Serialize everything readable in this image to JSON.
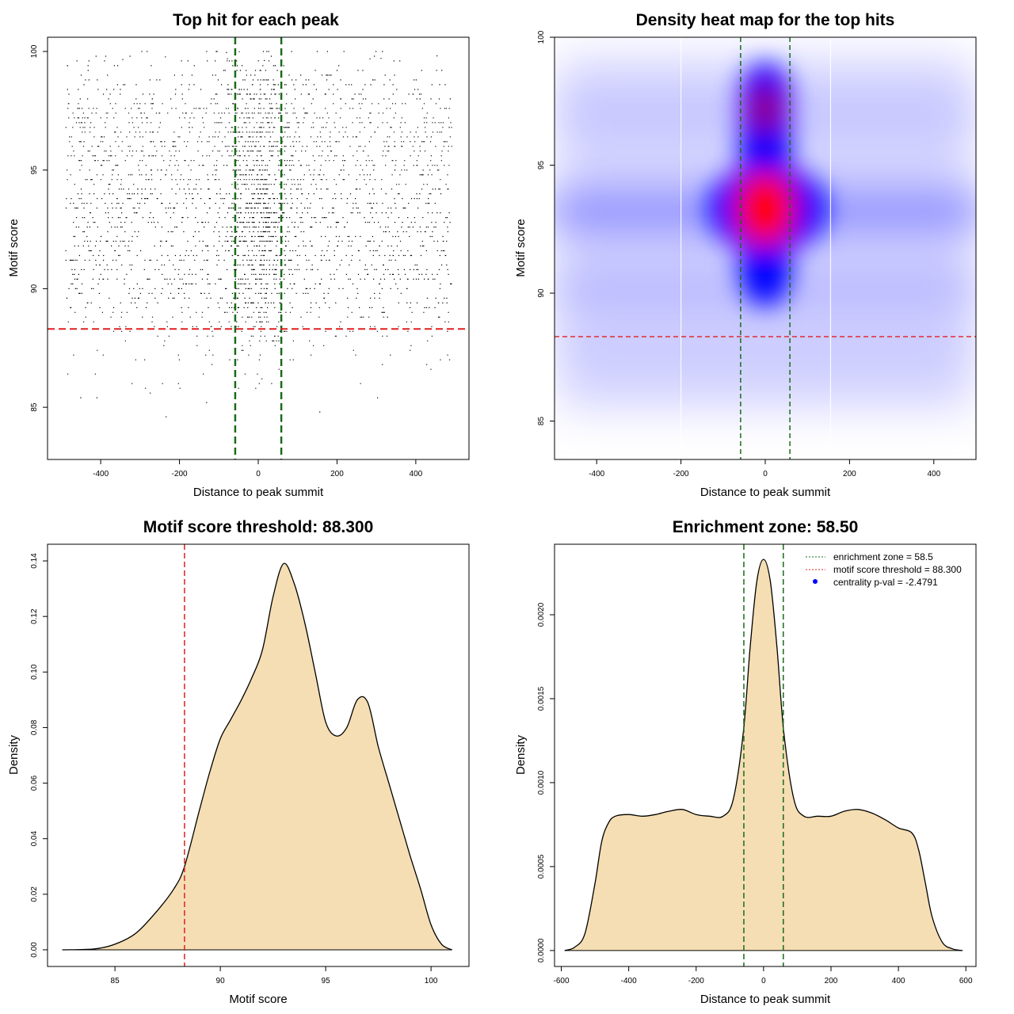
{
  "chart_data": [
    {
      "type": "scatter",
      "title": "Top hit for each peak",
      "xlabel": "Distance to peak summit",
      "ylabel": "Motif score",
      "xlim": [
        -535,
        535
      ],
      "ylim": [
        82.8,
        100.6
      ],
      "xticks": [
        -400,
        -200,
        0,
        200,
        400
      ],
      "yticks": [
        85,
        90,
        95,
        100
      ],
      "vlines": [
        -58.5,
        58.5
      ],
      "hline": 88.3,
      "point_count_approx": 12000,
      "x_range": [
        -490,
        490
      ],
      "y_range": [
        83.6,
        100
      ],
      "dense_center": {
        "x": 0,
        "y": 93
      },
      "colors": {
        "points": "#000000",
        "vline": "#1a6b1a",
        "hline": "#e02020"
      }
    },
    {
      "type": "heatmap",
      "title": "Density heat map for the top hits",
      "xlabel": "Distance to peak summit",
      "ylabel": "Motif score",
      "xlim": [
        -500,
        500
      ],
      "ylim": [
        83.5,
        100
      ],
      "xticks": [
        -400,
        -200,
        0,
        200,
        400
      ],
      "yticks": [
        85,
        90,
        95,
        100
      ],
      "vlines": [
        -58.5,
        58.5
      ],
      "hline": 88.3,
      "white_lines": [
        -200,
        155
      ],
      "hotspots": [
        {
          "x": 0,
          "y": 93.3,
          "level": "high"
        },
        {
          "x": 0,
          "y": 97.2,
          "level": "medium"
        }
      ],
      "colormap": [
        "#ffffff",
        "#0000ff",
        "#ff0000"
      ],
      "colors": {
        "vline": "#1a6b1a",
        "hline": "#e02020"
      }
    },
    {
      "type": "area",
      "title": "Motif score threshold: 88.300",
      "xlabel": "Motif score",
      "ylabel": "Density",
      "xlim": [
        81.8,
        101.8
      ],
      "ylim": [
        -0.006,
        0.146
      ],
      "xticks": [
        85,
        90,
        95,
        100
      ],
      "yticks": [
        0.0,
        0.02,
        0.04,
        0.06,
        0.08,
        0.1,
        0.12,
        0.14
      ],
      "ytick_labels": [
        "0.00",
        "0.02",
        "0.04",
        "0.06",
        "0.08",
        "0.10",
        "0.12",
        "0.14"
      ],
      "vline": 88.3,
      "x": [
        82.5,
        84,
        85,
        86,
        87,
        87.8,
        88.3,
        89,
        89.5,
        90,
        90.5,
        91,
        91.5,
        92,
        92.5,
        93,
        93.5,
        94,
        94.5,
        95,
        95.5,
        96,
        96.5,
        97,
        97.5,
        98,
        98.5,
        99,
        99.5,
        100,
        100.5,
        101
      ],
      "y": [
        0.0,
        0.0003,
        0.002,
        0.006,
        0.014,
        0.022,
        0.03,
        0.05,
        0.064,
        0.076,
        0.083,
        0.09,
        0.098,
        0.108,
        0.127,
        0.139,
        0.132,
        0.118,
        0.1,
        0.082,
        0.077,
        0.08,
        0.09,
        0.089,
        0.073,
        0.06,
        0.047,
        0.034,
        0.022,
        0.009,
        0.002,
        0.0
      ],
      "colors": {
        "fill": "#f5deb3",
        "line": "#000000",
        "vline": "#e02020"
      }
    },
    {
      "type": "area",
      "title": "Enrichment zone: 58.50",
      "xlabel": "Distance to peak summit",
      "ylabel": "Density",
      "xlim": [
        -620,
        630
      ],
      "ylim": [
        -9.5e-05,
        0.00242
      ],
      "xticks": [
        -600,
        -400,
        -200,
        0,
        200,
        400,
        600
      ],
      "yticks": [
        0.0,
        0.0005,
        0.001,
        0.0015,
        0.002
      ],
      "ytick_labels": [
        "0.0000",
        "0.0005",
        "0.0010",
        "0.0015",
        "0.0020"
      ],
      "vlines": [
        -58.5,
        58.5
      ],
      "x": [
        -590,
        -560,
        -530,
        -500,
        -480,
        -460,
        -440,
        -400,
        -360,
        -320,
        -280,
        -240,
        -200,
        -160,
        -120,
        -90,
        -60,
        -40,
        -20,
        0,
        20,
        40,
        60,
        90,
        120,
        160,
        200,
        240,
        280,
        320,
        360,
        400,
        440,
        460,
        480,
        500,
        530,
        560,
        590
      ],
      "y": [
        0.0,
        2e-05,
        0.0001,
        0.0004,
        0.00065,
        0.00076,
        0.0008,
        0.00081,
        0.0008,
        0.00081,
        0.00083,
        0.00084,
        0.00081,
        0.0008,
        0.0008,
        0.0009,
        0.0013,
        0.0018,
        0.0022,
        0.00233,
        0.0022,
        0.0018,
        0.0013,
        0.0009,
        0.0008,
        0.0008,
        0.0008,
        0.00083,
        0.00084,
        0.00082,
        0.00078,
        0.00073,
        0.0007,
        0.0006,
        0.0004,
        0.0002,
        5e-05,
        1e-05,
        0.0
      ],
      "legend": {
        "placement": "top-right",
        "entries": [
          {
            "label": "enrichment zone = 58.5",
            "style": "dotted-line",
            "color": "#1a6b1a"
          },
          {
            "label": "motif score threshold = 88.300",
            "style": "dotted-line",
            "color": "#e02020"
          },
          {
            "label": "centrality p-val = -2.4791",
            "style": "point",
            "color": "#0000ff"
          }
        ]
      },
      "colors": {
        "fill": "#f5deb3",
        "line": "#000000",
        "vline": "#1a6b1a"
      }
    }
  ]
}
